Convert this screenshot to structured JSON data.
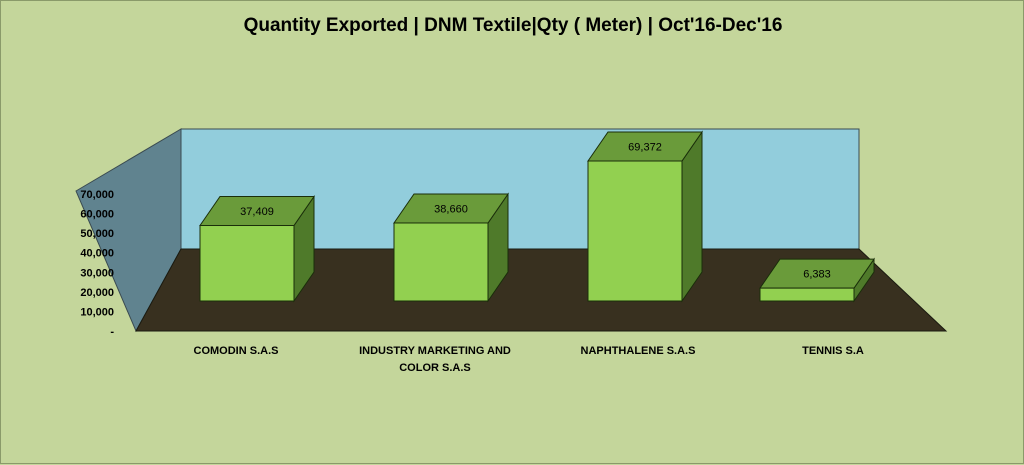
{
  "chart_data": {
    "type": "bar",
    "title": "Quantity Exported | DNM Textile|Qty ( Meter) | Oct'16-Dec'16",
    "categories": [
      "COMODIN S.A.S",
      "INDUSTRY MARKETING AND COLOR S.A.S",
      "NAPHTHALENE S.A.S",
      "TENNIS S.A"
    ],
    "category_lines": [
      [
        "COMODIN S.A.S"
      ],
      [
        "INDUSTRY MARKETING  AND",
        "COLOR S.A.S"
      ],
      [
        "NAPHTHALENE S.A.S"
      ],
      [
        "TENNIS S.A"
      ]
    ],
    "values": [
      37409,
      38660,
      69372,
      6383
    ],
    "value_labels": [
      "37,409",
      "38,660",
      "69,372",
      "6,383"
    ],
    "ylim": [
      0,
      70000
    ],
    "yticks": [
      0,
      10000,
      20000,
      30000,
      40000,
      50000,
      60000,
      70000
    ],
    "ytick_labels": [
      "-",
      "10,000",
      "20,000",
      "30,000",
      "40,000",
      "50,000",
      "60,000",
      "70,000"
    ],
    "style": "3d-column",
    "grid": false,
    "legend": "none",
    "colors": {
      "background": "#c4d69b",
      "back_wall": "#92cddc",
      "side_wall": "#60838f",
      "floor": "#38301f",
      "bar_front": "#92d050",
      "bar_top": "#6a9b3a",
      "bar_side": "#4f7a2a",
      "bar_outline": "#1a2e0a"
    }
  }
}
